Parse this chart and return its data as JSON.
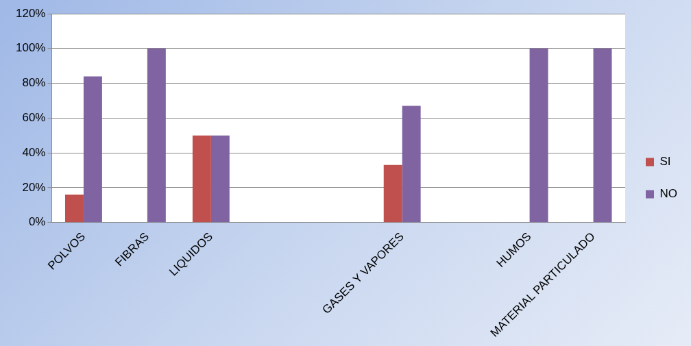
{
  "chart_data": {
    "type": "bar",
    "categories": [
      "POLVOS",
      "FIBRAS",
      "LIQUIDOS",
      null,
      null,
      "GASES Y VAPORES",
      null,
      "HUMOS",
      "MATERIAL PARTICULADO"
    ],
    "series": [
      {
        "name": "SI",
        "color": "#c0504d",
        "values": [
          16,
          0,
          50,
          null,
          null,
          33,
          null,
          0,
          0
        ]
      },
      {
        "name": "NO",
        "color": "#8064a2",
        "values": [
          84,
          100,
          50,
          null,
          null,
          67,
          null,
          100,
          100
        ]
      }
    ],
    "ylim": [
      0,
      120
    ],
    "yticks": [
      {
        "value": 0,
        "label": "0%"
      },
      {
        "value": 20,
        "label": "20%"
      },
      {
        "value": 40,
        "label": "40%"
      },
      {
        "value": 60,
        "label": "60%"
      },
      {
        "value": 80,
        "label": "80%"
      },
      {
        "value": 100,
        "label": "100%"
      },
      {
        "value": 120,
        "label": "120%"
      }
    ],
    "grid": "y",
    "legend": "right"
  }
}
